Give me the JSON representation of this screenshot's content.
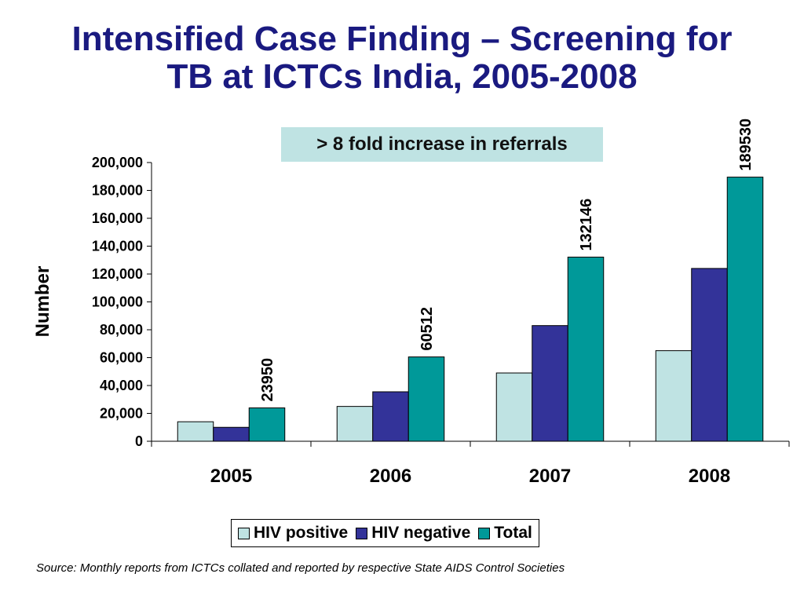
{
  "slide": {
    "title_line1": "Intensified Case Finding – Screening for",
    "title_line2": "TB at ICTCs India, 2005-2008",
    "callout": "> 8 fold increase in referrals",
    "source": "Source: Monthly reports from ICTCs collated and reported by respective State AIDS Control Societies"
  },
  "colors": {
    "title": "#1a1a80",
    "callout_bg": "#bfe3e3",
    "hiv_positive": "#bfe3e3",
    "hiv_negative": "#333399",
    "total": "#009999"
  },
  "chart_data": {
    "type": "bar",
    "ylabel": "Number",
    "ylim": [
      0,
      200000
    ],
    "yticks": [
      0,
      20000,
      40000,
      60000,
      80000,
      100000,
      120000,
      140000,
      160000,
      180000,
      200000
    ],
    "ytick_labels": [
      "0",
      "20,000",
      "40,000",
      "60,000",
      "80,000",
      "100,000",
      "120,000",
      "140,000",
      "160,000",
      "180,000",
      "200,000"
    ],
    "categories": [
      "2005",
      "2006",
      "2007",
      "2008"
    ],
    "series": [
      {
        "name": "HIV positive",
        "color": "#bfe3e3",
        "values": [
          14000,
          25000,
          49000,
          65000
        ],
        "labels": [
          "",
          "",
          "",
          ""
        ]
      },
      {
        "name": "HIV negative",
        "color": "#333399",
        "values": [
          10000,
          35500,
          83000,
          124000
        ],
        "labels": [
          "",
          "",
          "",
          ""
        ]
      },
      {
        "name": "Total",
        "color": "#009999",
        "values": [
          23950,
          60512,
          132146,
          189530
        ],
        "labels": [
          "23950",
          "60512",
          "132146",
          "189530"
        ]
      }
    ],
    "legend_position": "bottom",
    "grid": false
  }
}
